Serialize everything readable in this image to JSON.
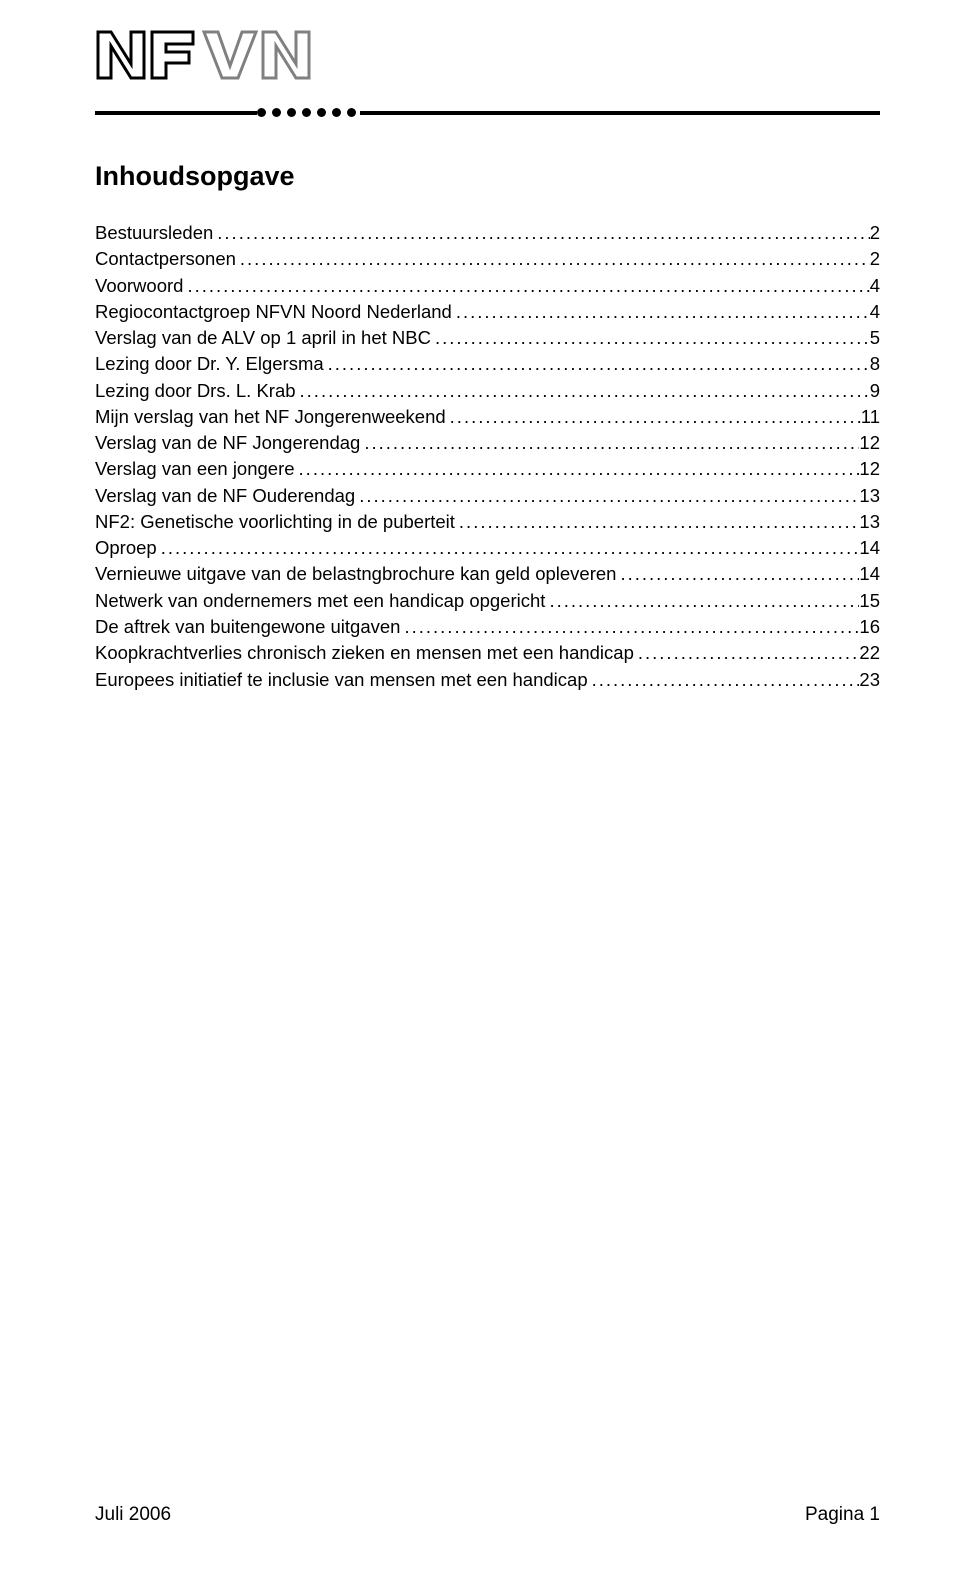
{
  "colors": {
    "background": "#ffffff",
    "text": "#000000",
    "logo_dark": "#000000",
    "logo_grey": "#808080"
  },
  "typography": {
    "body_font": "Verdana, Geneva, sans-serif",
    "body_size_pt": 14,
    "title_size_pt": 20,
    "title_weight": "bold"
  },
  "logo": {
    "text_primary": "NF",
    "text_secondary": "VN",
    "dot_count": 7
  },
  "title": "Inhoudsopgave",
  "toc": [
    {
      "label": "Bestuursleden",
      "page": "2"
    },
    {
      "label": "Contactpersonen",
      "page": "2"
    },
    {
      "label": "Voorwoord",
      "page": "4"
    },
    {
      "label": "Regiocontactgroep NFVN Noord Nederland",
      "page": "4"
    },
    {
      "label": "Verslag van de ALV op 1 april in het NBC",
      "page": "5"
    },
    {
      "label": "Lezing door Dr. Y. Elgersma",
      "page": "8"
    },
    {
      "label": "Lezing door Drs. L. Krab",
      "page": "9"
    },
    {
      "label": "Mijn verslag van het NF Jongerenweekend",
      "page": "11"
    },
    {
      "label": "Verslag van de NF Jongerendag",
      "page": "12"
    },
    {
      "label": "Verslag van een jongere",
      "page": "12"
    },
    {
      "label": "Verslag van de NF Ouderendag",
      "page": "13"
    },
    {
      "label": "NF2: Genetische voorlichting in de puberteit",
      "page": "13"
    },
    {
      "label": "Oproep",
      "page": "14"
    },
    {
      "label": "Vernieuwe uitgave van de belastngbrochure kan geld opleveren",
      "page": "14"
    },
    {
      "label": "Netwerk van ondernemers met een handicap opgericht",
      "page": "15"
    },
    {
      "label": "De aftrek van buitengewone uitgaven",
      "page": "16"
    },
    {
      "label": "Koopkrachtverlies chronisch zieken en mensen met een handicap",
      "page": "22"
    },
    {
      "label": "Europees initiatief te inclusie van mensen met een handicap",
      "page": "23"
    }
  ],
  "footer": {
    "left": "Juli 2006",
    "right": "Pagina 1"
  }
}
